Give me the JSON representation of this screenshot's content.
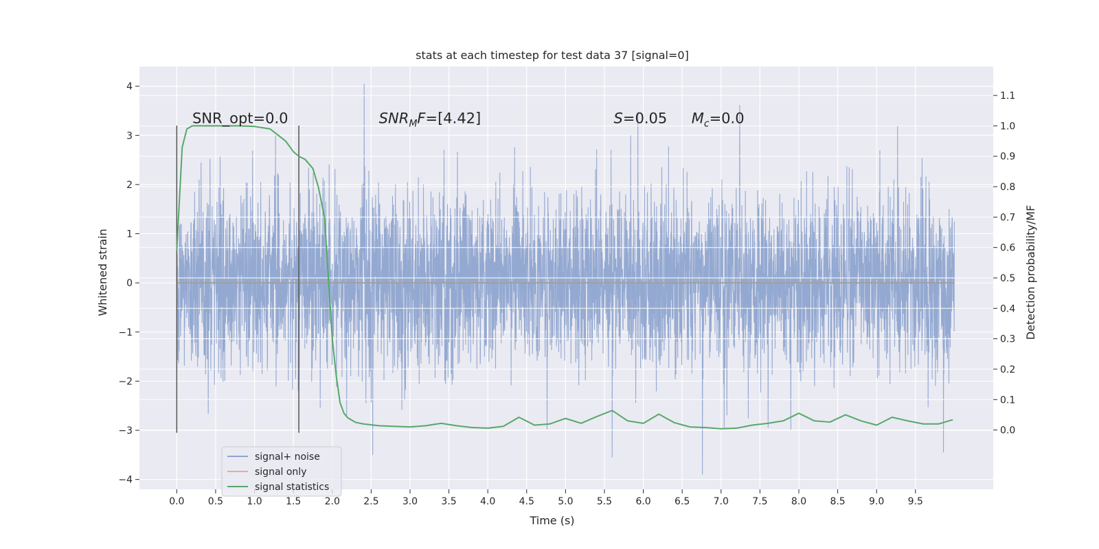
{
  "chart_data": {
    "type": "line",
    "title": "stats at each timestep for test data 37 [signal=0]",
    "xlabel": "Time (s)",
    "ylabel": "Whitened strain",
    "ylabel_right": "Detection probability/MF",
    "xlim": [
      -0.48,
      10.5
    ],
    "ylim": [
      -4.2,
      4.4
    ],
    "ylim_right": [
      -0.195,
      1.195
    ],
    "x_ticks": [
      0.0,
      0.5,
      1.0,
      1.5,
      2.0,
      2.5,
      3.0,
      3.5,
      4.0,
      4.5,
      5.0,
      5.5,
      6.0,
      6.5,
      7.0,
      7.5,
      8.0,
      8.5,
      9.0,
      9.5
    ],
    "x_tick_labels": [
      "0.0",
      "0.5",
      "1.0",
      "1.5",
      "2.0",
      "2.5",
      "3.0",
      "3.5",
      "4.0",
      "4.5",
      "5.0",
      "5.5",
      "6.0",
      "6.5",
      "7.0",
      "7.5",
      "8.0",
      "8.5",
      "9.0",
      "9.5"
    ],
    "y_ticks": [
      -4,
      -3,
      -2,
      -1,
      0,
      1,
      2,
      3,
      4
    ],
    "y_tick_labels": [
      "−4",
      "−3",
      "−2",
      "−1",
      "0",
      "1",
      "2",
      "3",
      "4"
    ],
    "y_ticks_right": [
      0.0,
      0.1,
      0.2,
      0.3,
      0.4,
      0.5,
      0.6,
      0.7,
      0.8,
      0.9,
      1.0,
      1.1
    ],
    "y_tick_labels_right": [
      "0.0",
      "0.1",
      "0.2",
      "0.3",
      "0.4",
      "0.5",
      "0.6",
      "0.7",
      "0.8",
      "0.9",
      "1.0",
      "1.1"
    ],
    "grid": true,
    "legend_position": "lower-left",
    "series": [
      {
        "name": "signal+ noise",
        "axis": "left",
        "color": "#8fa5cf",
        "duration": 10.0,
        "typical_band": [
          -1.9,
          1.9
        ],
        "notable_peaks": [
          {
            "x": 2.41,
            "y": 4.05
          },
          {
            "x": 7.24,
            "y": 3.62
          },
          {
            "x": 5.93,
            "y": 3.48
          },
          {
            "x": 9.27,
            "y": 3.2
          },
          {
            "x": 2.52,
            "y": -3.5
          },
          {
            "x": 5.6,
            "y": -3.55
          },
          {
            "x": 6.76,
            "y": -3.9
          },
          {
            "x": 9.86,
            "y": -3.45
          }
        ]
      },
      {
        "name": "signal only",
        "axis": "left",
        "color": "#e5ae98",
        "x": [
          0.0,
          10.0
        ],
        "y": [
          0.0,
          0.0
        ]
      },
      {
        "name": "signal statistics",
        "axis": "right",
        "color": "#55a868",
        "x": [
          0.0,
          0.07,
          0.13,
          0.2,
          0.3,
          0.5,
          0.8,
          1.0,
          1.2,
          1.3,
          1.4,
          1.5,
          1.57,
          1.65,
          1.75,
          1.82,
          1.9,
          1.95,
          2.0,
          2.05,
          2.1,
          2.15,
          2.2,
          2.3,
          2.4,
          2.6,
          3.0,
          3.2,
          3.4,
          3.6,
          3.8,
          4.0,
          4.2,
          4.4,
          4.6,
          4.8,
          5.0,
          5.2,
          5.4,
          5.6,
          5.8,
          6.0,
          6.2,
          6.4,
          6.6,
          6.8,
          7.0,
          7.2,
          7.4,
          7.6,
          7.8,
          8.0,
          8.2,
          8.4,
          8.6,
          8.8,
          9.0,
          9.2,
          9.4,
          9.6,
          9.8,
          9.98
        ],
        "y": [
          0.59,
          0.93,
          0.99,
          1.0,
          1.0,
          1.0,
          1.0,
          0.998,
          0.99,
          0.97,
          0.95,
          0.915,
          0.9,
          0.89,
          0.86,
          0.8,
          0.7,
          0.5,
          0.3,
          0.18,
          0.09,
          0.055,
          0.04,
          0.025,
          0.02,
          0.014,
          0.01,
          0.014,
          0.022,
          0.014,
          0.008,
          0.006,
          0.012,
          0.042,
          0.016,
          0.02,
          0.038,
          0.022,
          0.044,
          0.064,
          0.03,
          0.022,
          0.052,
          0.024,
          0.01,
          0.008,
          0.004,
          0.006,
          0.016,
          0.022,
          0.03,
          0.055,
          0.03,
          0.026,
          0.05,
          0.03,
          0.016,
          0.042,
          0.03,
          0.02,
          0.02,
          0.034
        ]
      }
    ],
    "vlines": [
      {
        "x": 0.0,
        "ymin": -3.05,
        "ymax": 3.2
      },
      {
        "x": 1.57,
        "ymin": -3.05,
        "ymax": 3.2
      }
    ],
    "annotations": [
      {
        "text": "SNR_opt=0.0",
        "x": 0.2,
        "y": 3.25
      },
      {
        "text": "SNR",
        "sub": "M",
        "suffix": "F=[4.42]",
        "x": 2.6,
        "y": 3.25,
        "italic": true
      },
      {
        "text": "S",
        "suffix": "=0.05",
        "x": 5.62,
        "y": 3.25,
        "italic": true
      },
      {
        "text": "M",
        "sub": "c",
        "suffix": "=0.0",
        "x": 6.62,
        "y": 3.25,
        "italic": true
      }
    ]
  }
}
